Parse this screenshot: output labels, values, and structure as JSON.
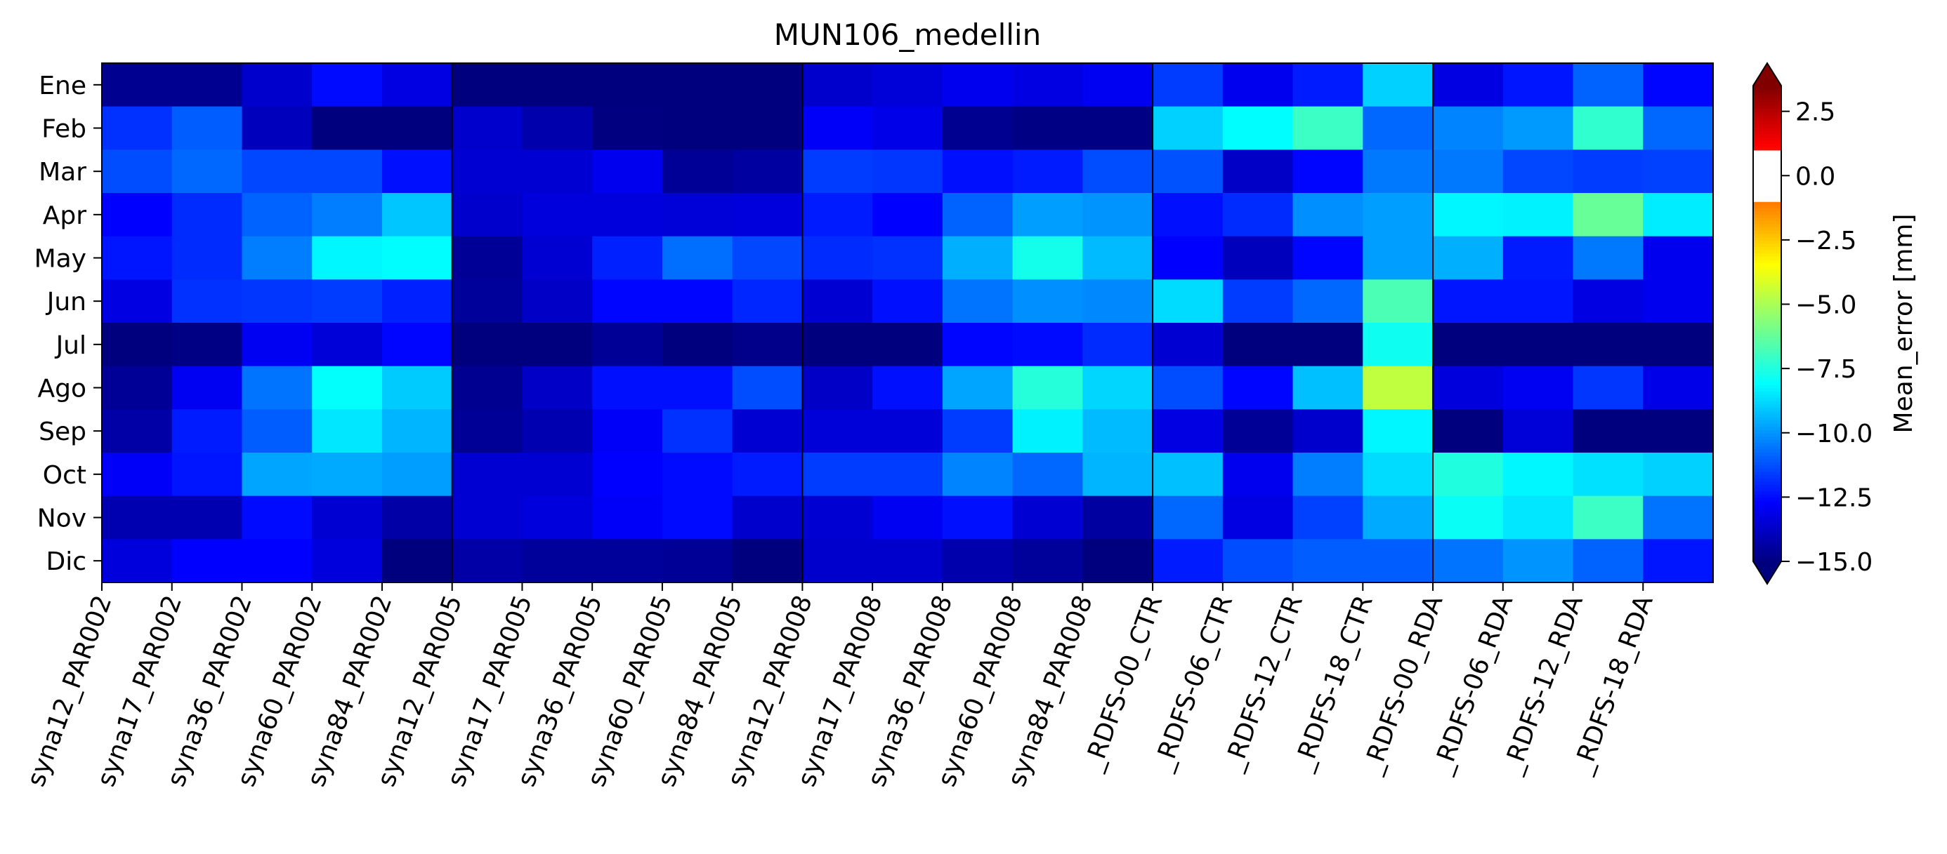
{
  "chart_data": {
    "type": "heatmap",
    "title": "MUN106_medellin",
    "rows": [
      "Ene",
      "Feb",
      "Mar",
      "Apr",
      "May",
      "Jun",
      "Jul",
      "Ago",
      "Sep",
      "Oct",
      "Nov",
      "Dic"
    ],
    "columns": [
      "syna12_PAR002",
      "syna17_PAR002",
      "syna36_PAR002",
      "syna60_PAR002",
      "syna84_PAR002",
      "syna12_PAR005",
      "syna17_PAR005",
      "syna36_PAR005",
      "syna60_PAR005",
      "syna84_PAR005",
      "syna12_PAR008",
      "syna17_PAR008",
      "syna36_PAR008",
      "syna60_PAR008",
      "syna84_PAR008",
      "_RDFS-00_CTR",
      "_RDFS-06_CTR",
      "_RDFS-12_CTR",
      "_RDFS-18_CTR",
      "_RDFS-00_RDA",
      "_RDFS-06_RDA",
      "_RDFS-12_RDA",
      "_RDFS-18_RDA"
    ],
    "values": [
      [
        -14.7,
        -14.7,
        -13.6,
        -12.5,
        -13.2,
        -15.4,
        -15.4,
        -15.4,
        -15.4,
        -15.4,
        -13.6,
        -13.4,
        -13.0,
        -13.2,
        -12.9,
        -11.6,
        -13.0,
        -12.2,
        -8.9,
        -13.2,
        -12.3,
        -10.9,
        -12.6
      ],
      [
        -11.8,
        -11.0,
        -13.9,
        -15.5,
        -15.2,
        -13.6,
        -14.2,
        -15.0,
        -15.5,
        -15.3,
        -12.8,
        -13.1,
        -14.7,
        -14.9,
        -14.9,
        -8.9,
        -8.1,
        -7.0,
        -10.8,
        -10.3,
        -9.9,
        -7.2,
        -10.8
      ],
      [
        -11.3,
        -10.8,
        -11.4,
        -11.4,
        -12.4,
        -13.5,
        -13.5,
        -13.0,
        -14.6,
        -14.4,
        -11.6,
        -11.7,
        -12.4,
        -12.2,
        -11.3,
        -11.2,
        -13.7,
        -12.6,
        -10.5,
        -10.5,
        -11.4,
        -11.6,
        -11.5
      ],
      [
        -12.7,
        -11.9,
        -10.9,
        -10.4,
        -9.1,
        -13.6,
        -13.3,
        -13.3,
        -13.4,
        -13.3,
        -12.2,
        -12.7,
        -10.9,
        -9.8,
        -10.0,
        -12.4,
        -11.9,
        -10.1,
        -9.8,
        -8.2,
        -8.3,
        -6.2,
        -8.4
      ],
      [
        -12.3,
        -11.9,
        -10.4,
        -8.2,
        -8.1,
        -14.6,
        -13.5,
        -12.1,
        -10.7,
        -11.4,
        -11.9,
        -11.8,
        -9.5,
        -7.7,
        -9.3,
        -12.7,
        -13.9,
        -12.6,
        -9.8,
        -9.5,
        -12.2,
        -10.5,
        -13.0
      ],
      [
        -13.2,
        -11.8,
        -11.7,
        -11.6,
        -12.1,
        -14.5,
        -13.7,
        -12.6,
        -12.6,
        -12.0,
        -13.5,
        -12.4,
        -10.6,
        -10.1,
        -10.2,
        -8.7,
        -11.6,
        -10.8,
        -6.7,
        -12.3,
        -12.3,
        -13.2,
        -13.0
      ],
      [
        -15.4,
        -14.9,
        -12.9,
        -13.4,
        -12.6,
        -15.4,
        -15.3,
        -14.6,
        -15.4,
        -14.8,
        -15.2,
        -15.1,
        -12.6,
        -12.5,
        -11.9,
        -13.5,
        -15.4,
        -15.3,
        -7.8,
        -15.3,
        -15.3,
        -15.3,
        -15.1
      ],
      [
        -14.6,
        -12.9,
        -10.6,
        -8.0,
        -9.0,
        -14.7,
        -13.7,
        -12.4,
        -12.4,
        -11.3,
        -13.7,
        -12.4,
        -9.7,
        -7.4,
        -8.8,
        -11.3,
        -12.6,
        -9.2,
        -4.6,
        -13.3,
        -12.9,
        -11.7,
        -13.1
      ],
      [
        -14.3,
        -12.2,
        -11.0,
        -8.5,
        -9.4,
        -14.6,
        -14.1,
        -12.8,
        -11.8,
        -13.5,
        -13.4,
        -13.4,
        -11.6,
        -8.3,
        -9.3,
        -13.2,
        -14.6,
        -13.6,
        -8.2,
        -15.2,
        -13.4,
        -15.2,
        -15.1
      ],
      [
        -12.8,
        -12.3,
        -9.7,
        -9.6,
        -9.8,
        -13.5,
        -13.5,
        -12.7,
        -12.5,
        -12.2,
        -11.6,
        -11.6,
        -10.3,
        -10.8,
        -9.4,
        -9.2,
        -13.0,
        -10.4,
        -8.7,
        -7.5,
        -8.2,
        -8.6,
        -8.9
      ],
      [
        -14.1,
        -14.1,
        -12.5,
        -13.5,
        -14.3,
        -13.5,
        -13.3,
        -12.8,
        -12.5,
        -13.6,
        -13.5,
        -12.9,
        -12.4,
        -13.5,
        -14.4,
        -10.8,
        -13.2,
        -11.5,
        -9.6,
        -7.9,
        -8.5,
        -7.0,
        -10.6
      ],
      [
        -13.3,
        -12.7,
        -12.7,
        -13.3,
        -15.1,
        -14.3,
        -14.5,
        -14.5,
        -14.6,
        -15.3,
        -13.6,
        -13.6,
        -14.2,
        -14.5,
        -15.3,
        -12.2,
        -11.3,
        -11.0,
        -11.0,
        -10.6,
        -10.0,
        -10.9,
        -12.3
      ]
    ],
    "group_dividers_after_column": [
      5,
      10,
      15,
      19
    ],
    "colorbar": {
      "label": "Mean_error [mm]",
      "ticks": [
        "2.5",
        "0.0",
        "−2.5",
        "−5.0",
        "−7.5",
        "−10.0",
        "−12.5",
        "−15.0"
      ],
      "tick_values": [
        2.5,
        0.0,
        -2.5,
        -5.0,
        -7.5,
        -10.0,
        -12.5,
        -15.0
      ],
      "range": [
        -15.0,
        3.5
      ],
      "extend": "both",
      "colormap": "jet",
      "white_band": [
        -1.0,
        1.0
      ],
      "under_color": "#00007f",
      "over_color": "#800000"
    }
  }
}
